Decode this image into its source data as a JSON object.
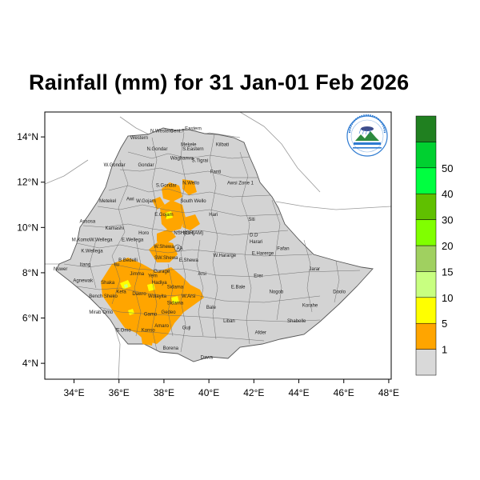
{
  "title": "Rainfall (mm) for 31 Jan-01 Feb 2026",
  "x_ticks": [
    "34°E",
    "36°E",
    "38°E",
    "40°E",
    "42°E",
    "44°E",
    "46°E",
    "48°E"
  ],
  "y_ticks": [
    "14°N",
    "12°N",
    "10°N",
    "8°N",
    "6°N",
    "4°N"
  ],
  "colorbar": {
    "labels": [
      "1",
      "5",
      "10",
      "15",
      "20",
      "30",
      "40",
      "50"
    ],
    "colors": [
      "#d9d9d9",
      "#ffa500",
      "#ffff00",
      "#c8ff80",
      "#a0d060",
      "#80ff00",
      "#60c000",
      "#00ff40",
      "#00d030",
      "#208020"
    ]
  },
  "logo": {
    "name": "ethiopian-meteorology-institute-logo"
  },
  "regions": [
    {
      "name": "N.Western",
      "lon": 37.9,
      "lat": 14.2
    },
    {
      "name": "Cent.T",
      "lon": 38.6,
      "lat": 14.2
    },
    {
      "name": "Eastern",
      "lon": 39.3,
      "lat": 14.3
    },
    {
      "name": "Western",
      "lon": 36.9,
      "lat": 13.9
    },
    {
      "name": "Mekele",
      "lon": 39.1,
      "lat": 13.6
    },
    {
      "name": "S.Eastern",
      "lon": 39.3,
      "lat": 13.4
    },
    {
      "name": "Kilbati",
      "lon": 40.6,
      "lat": 13.6
    },
    {
      "name": "N.Gondar",
      "lon": 37.7,
      "lat": 13.4
    },
    {
      "name": "Waghamra",
      "lon": 38.8,
      "lat": 13.0
    },
    {
      "name": "S.Tigrai",
      "lon": 39.6,
      "lat": 12.9
    },
    {
      "name": "W.Gondar",
      "lon": 35.8,
      "lat": 12.7
    },
    {
      "name": "Gondar",
      "lon": 37.2,
      "lat": 12.7
    },
    {
      "name": "Fanti",
      "lon": 40.3,
      "lat": 12.4
    },
    {
      "name": "S.Gondar",
      "lon": 38.1,
      "lat": 11.8
    },
    {
      "name": "N.Wello",
      "lon": 39.2,
      "lat": 11.9
    },
    {
      "name": "Awsi Zone 1",
      "lon": 41.4,
      "lat": 11.9
    },
    {
      "name": "Metekel",
      "lon": 35.5,
      "lat": 11.1
    },
    {
      "name": "Awi",
      "lon": 36.5,
      "lat": 11.2
    },
    {
      "name": "W.Gojam",
      "lon": 37.2,
      "lat": 11.1
    },
    {
      "name": "South Wello",
      "lon": 39.3,
      "lat": 11.1
    },
    {
      "name": "E.Gojam",
      "lon": 38.0,
      "lat": 10.5
    },
    {
      "name": "Hari",
      "lon": 40.2,
      "lat": 10.5
    },
    {
      "name": "Siti",
      "lon": 41.9,
      "lat": 10.3
    },
    {
      "name": "Assosa",
      "lon": 34.6,
      "lat": 10.2
    },
    {
      "name": "Kamashi",
      "lon": 35.8,
      "lat": 9.9
    },
    {
      "name": "Horo",
      "lon": 37.1,
      "lat": 9.7
    },
    {
      "name": "NSH(AM)",
      "lon": 39.3,
      "lat": 9.7
    },
    {
      "name": "NSH(OR)",
      "lon": 38.9,
      "lat": 9.7
    },
    {
      "name": "D.D",
      "lon": 42.0,
      "lat": 9.6
    },
    {
      "name": "Harari",
      "lon": 42.1,
      "lat": 9.3
    },
    {
      "name": "M.Komo",
      "lon": 34.3,
      "lat": 9.4
    },
    {
      "name": "W.Wellega",
      "lon": 35.2,
      "lat": 9.4
    },
    {
      "name": "E.Wellega",
      "lon": 36.6,
      "lat": 9.4
    },
    {
      "name": "W.Shewa",
      "lon": 38.0,
      "lat": 9.1
    },
    {
      "name": "Fafan",
      "lon": 43.3,
      "lat": 9.0
    },
    {
      "name": "K.Wellega",
      "lon": 34.8,
      "lat": 8.9
    },
    {
      "name": "AA",
      "lon": 38.7,
      "lat": 9.0
    },
    {
      "name": "E.Harerge",
      "lon": 42.4,
      "lat": 8.8
    },
    {
      "name": "W.Hararge",
      "lon": 40.7,
      "lat": 8.7
    },
    {
      "name": "Itang",
      "lon": 34.5,
      "lat": 8.3
    },
    {
      "name": "Ilu",
      "lon": 35.9,
      "lat": 8.3
    },
    {
      "name": "B.Bedelli",
      "lon": 36.4,
      "lat": 8.5
    },
    {
      "name": "SW.Shewa",
      "lon": 38.1,
      "lat": 8.6
    },
    {
      "name": "E.Shewa",
      "lon": 39.1,
      "lat": 8.5
    },
    {
      "name": "Nuwer",
      "lon": 33.4,
      "lat": 8.1
    },
    {
      "name": "Jarar",
      "lon": 44.7,
      "lat": 8.1
    },
    {
      "name": "Jimma",
      "lon": 36.8,
      "lat": 7.9
    },
    {
      "name": "Yem",
      "lon": 37.5,
      "lat": 7.8
    },
    {
      "name": "Gurage",
      "lon": 37.9,
      "lat": 8.0
    },
    {
      "name": "Arsi",
      "lon": 39.7,
      "lat": 7.9
    },
    {
      "name": "Erer",
      "lon": 42.2,
      "lat": 7.8
    },
    {
      "name": "Agnewak",
      "lon": 34.4,
      "lat": 7.6
    },
    {
      "name": "Shaka",
      "lon": 35.5,
      "lat": 7.5
    },
    {
      "name": "Hadiya",
      "lon": 37.8,
      "lat": 7.5
    },
    {
      "name": "Sidama",
      "lon": 38.5,
      "lat": 7.3
    },
    {
      "name": "E.Bale",
      "lon": 41.3,
      "lat": 7.3
    },
    {
      "name": "Kefa",
      "lon": 36.1,
      "lat": 7.1
    },
    {
      "name": "Dawro",
      "lon": 36.9,
      "lat": 7.0
    },
    {
      "name": "Wolayita",
      "lon": 37.7,
      "lat": 6.9
    },
    {
      "name": "W.Arsi",
      "lon": 39.1,
      "lat": 6.9
    },
    {
      "name": "Nogob",
      "lon": 43.0,
      "lat": 7.1
    },
    {
      "name": "Doolo",
      "lon": 45.8,
      "lat": 7.1
    },
    {
      "name": "Bench Sheko",
      "lon": 35.3,
      "lat": 6.9
    },
    {
      "name": "Sidama",
      "lon": 38.5,
      "lat": 6.6
    },
    {
      "name": "Bale",
      "lon": 40.1,
      "lat": 6.4
    },
    {
      "name": "Korahe",
      "lon": 44.5,
      "lat": 6.5
    },
    {
      "name": "Mirab Omo",
      "lon": 35.2,
      "lat": 6.2
    },
    {
      "name": "Gamo",
      "lon": 37.4,
      "lat": 6.1
    },
    {
      "name": "Gedeo",
      "lon": 38.2,
      "lat": 6.2
    },
    {
      "name": "Liban",
      "lon": 40.9,
      "lat": 5.8
    },
    {
      "name": "Shabelle",
      "lon": 43.9,
      "lat": 5.8
    },
    {
      "name": "Amaro",
      "lon": 37.9,
      "lat": 5.6
    },
    {
      "name": "Guji",
      "lon": 39.0,
      "lat": 5.5
    },
    {
      "name": "S.Omo",
      "lon": 36.2,
      "lat": 5.4
    },
    {
      "name": "Afder",
      "lon": 42.3,
      "lat": 5.3
    },
    {
      "name": "Konso",
      "lon": 37.3,
      "lat": 5.4
    },
    {
      "name": "Borena",
      "lon": 38.3,
      "lat": 4.6
    },
    {
      "name": "Dawa",
      "lon": 39.9,
      "lat": 4.2
    }
  ]
}
